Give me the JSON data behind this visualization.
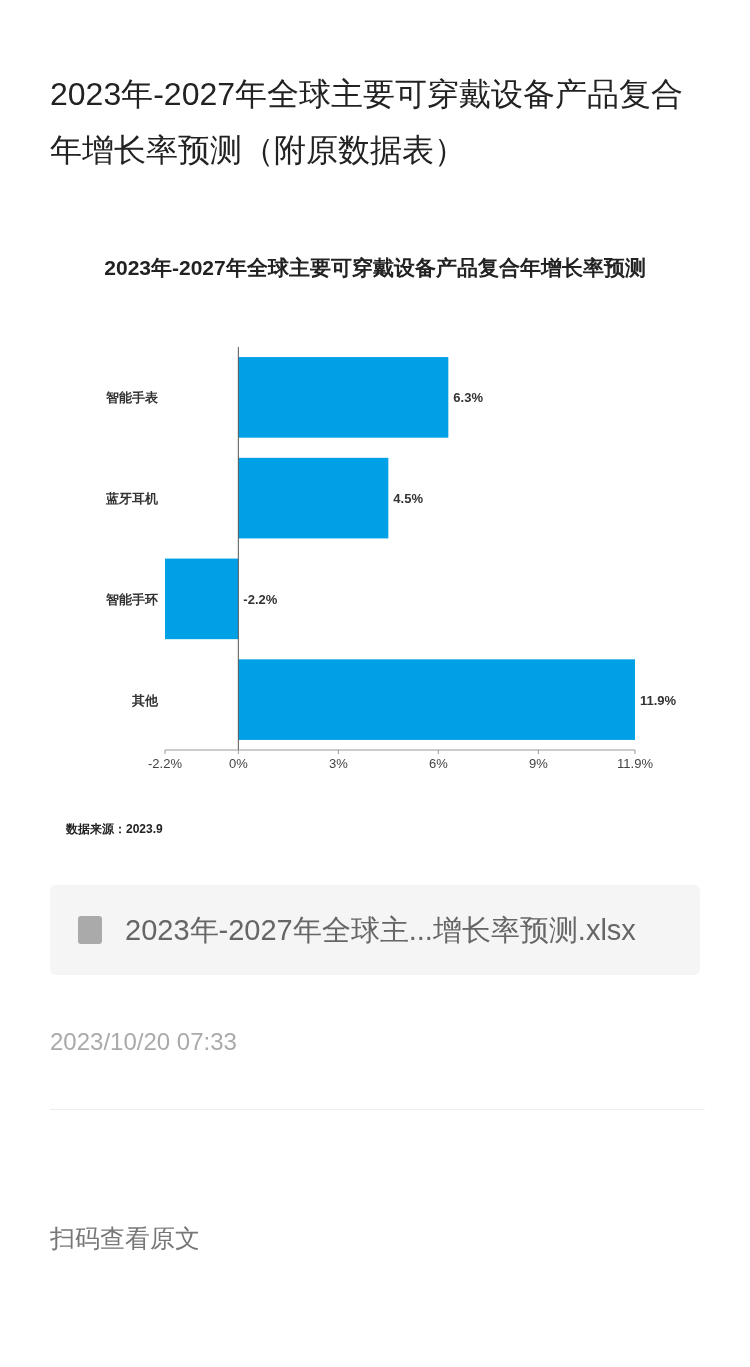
{
  "chart_data": {
    "type": "bar",
    "orientation": "horizontal",
    "title": "2023年-2027年全球主要可穿戴设备产品复合年增长率预测（附原数据表）",
    "subtitle": "2023年-2027年全球主要可穿戴设备产品复合年增长率预测",
    "categories": [
      "智能手表",
      "蓝牙耳机",
      "智能手环",
      "其他"
    ],
    "values": [
      6.3,
      4.5,
      -2.2,
      11.9
    ],
    "value_labels": [
      "6.3%",
      "4.5%",
      "-2.2%",
      "11.9%"
    ],
    "color": "#00a0e6",
    "xlim": [
      -2.2,
      11.9
    ],
    "xticks": [
      {
        "value": -2.2,
        "label": "-2.2%"
      },
      {
        "value": 0,
        "label": "0%"
      },
      {
        "value": 3,
        "label": "3%"
      },
      {
        "value": 6,
        "label": "6%"
      },
      {
        "value": 9,
        "label": "9%"
      },
      {
        "value": 11.9,
        "label": "11.9%"
      }
    ],
    "annotations": [
      "数据来源：2023.9",
      "2023年-2027年全球主...增长率预测.xlsx",
      "2023/10/20 07:33",
      "扫码查看原文"
    ]
  }
}
